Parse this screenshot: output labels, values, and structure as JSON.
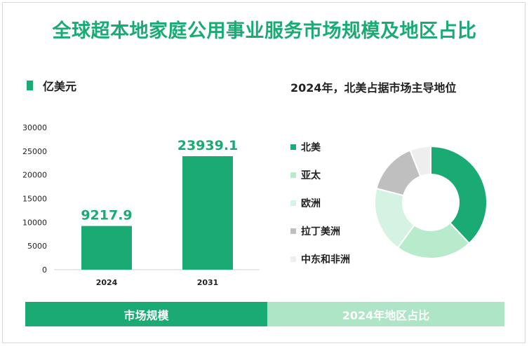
{
  "title": "全球超本地家庭公用事业服务市场规模及地区占比",
  "bar_legend": {
    "label": "亿美元",
    "color": "#1aaa74"
  },
  "pie_title": "2024年，北美占据市场主导地位",
  "footer": {
    "left_label": "市场规模",
    "right_label": "2024年地区占比"
  },
  "chart_data": [
    {
      "type": "bar",
      "categories": [
        "2024",
        "2031"
      ],
      "values": [
        9217.9,
        23939.1
      ],
      "value_labels": [
        "9217.9",
        "23939.1"
      ],
      "ylim": [
        0,
        30000
      ],
      "yticks": [
        0,
        5000,
        10000,
        15000,
        20000,
        25000,
        30000
      ],
      "color": "#1aaa74",
      "grid": false
    },
    {
      "type": "pie",
      "donut": true,
      "labels": [
        "北美",
        "亚太",
        "欧洲",
        "拉丁美洲",
        "中东和非洲"
      ],
      "values": [
        38,
        22,
        19,
        15,
        6
      ],
      "colors": [
        "#1aaa74",
        "#b7ebcc",
        "#d5f3e2",
        "#bfbfbf",
        "#eeeeee"
      ],
      "legend_position": "left"
    }
  ]
}
